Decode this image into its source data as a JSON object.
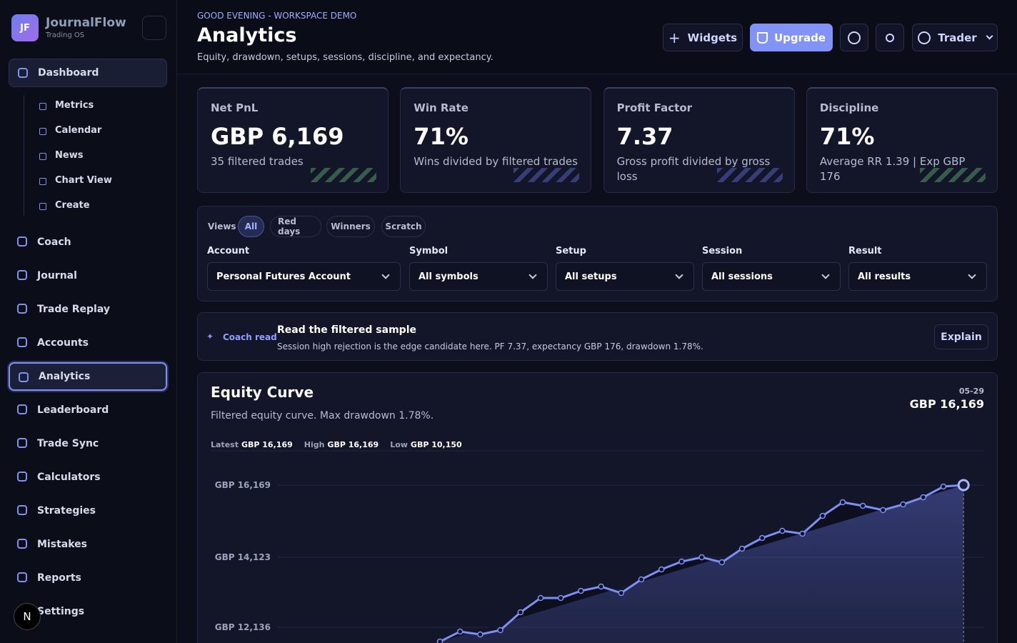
{
  "sidebar": {
    "initials": "JF",
    "brand": "JournalFlow",
    "tagline": "Trading OS",
    "dashboard": {
      "label": "Dashboard",
      "children": [
        "Metrics",
        "Calendar",
        "News",
        "Chart View",
        "Create"
      ]
    },
    "nav": [
      "Coach",
      "Journal",
      "Trade Replay",
      "Accounts",
      "Analytics",
      "Leaderboard",
      "Trade Sync",
      "Calculators",
      "Strategies",
      "Mistakes",
      "Reports",
      "Settings"
    ]
  },
  "dev_badge": "N",
  "header": {
    "greeting": "GOOD EVENING - WORKSPACE DEMO",
    "title": "Analytics",
    "subtitle": "Equity, drawdown, setups, sessions, discipline, and expectancy.",
    "widgets": "Widgets",
    "upgrade": "Upgrade",
    "user": "Trader"
  },
  "kpis": [
    {
      "label": "Net PnL",
      "value": "GBP 6,169",
      "note": "35 filtered trades"
    },
    {
      "label": "Win Rate",
      "value": "71%",
      "note": "Wins divided by filtered trades"
    },
    {
      "label": "Profit Factor",
      "value": "7.37",
      "note": "Gross profit divided by gross loss"
    },
    {
      "label": "Discipline",
      "value": "71%",
      "note": "Average RR 1.39 | Exp GBP 176"
    }
  ],
  "filters": {
    "views_label": "Views",
    "views": [
      "All",
      "Red days",
      "Winners",
      "Scratch"
    ],
    "fields": [
      {
        "label": "Account",
        "value": "Personal Futures Account"
      },
      {
        "label": "Symbol",
        "value": "All symbols"
      },
      {
        "label": "Setup",
        "value": "All setups"
      },
      {
        "label": "Session",
        "value": "All sessions"
      },
      {
        "label": "Result",
        "value": "All results"
      }
    ]
  },
  "coach": {
    "tag": "Coach read",
    "title": "Read the filtered sample",
    "text": "Session high rejection is the edge candidate here. PF 7.37, expectancy GBP 176, drawdown 1.78%.",
    "button": "Explain"
  },
  "chart_data": {
    "type": "line",
    "title": "Equity Curve",
    "subtitle": "Filtered equity curve. Max drawdown 1.78%.",
    "stats": [
      {
        "label": "Latest",
        "value": "GBP 16,169"
      },
      {
        "label": "High",
        "value": "GBP 16,169"
      },
      {
        "label": "Low",
        "value": "GBP 10,150"
      }
    ],
    "hover": {
      "date": "05-29",
      "value": "GBP 16,169"
    },
    "color": "#7d8ff5",
    "values": [
      11730,
      12014,
      11933,
      12055,
      12561,
      12967,
      12967,
      13169,
      13291,
      13109,
      13494,
      13777,
      14000,
      14122,
      13980,
      14365,
      14669,
      14872,
      14791,
      15297,
      15683,
      15581,
      15460,
      15622,
      15824,
      16128,
      16169
    ],
    "ylim": [
      11670,
      17142
    ],
    "yticks": [
      {
        "value": 16169,
        "label": "GBP 16,169"
      },
      {
        "value": 14123,
        "label": "GBP 14,123"
      },
      {
        "value": 12136,
        "label": "GBP 12,136"
      }
    ],
    "grid": true
  }
}
